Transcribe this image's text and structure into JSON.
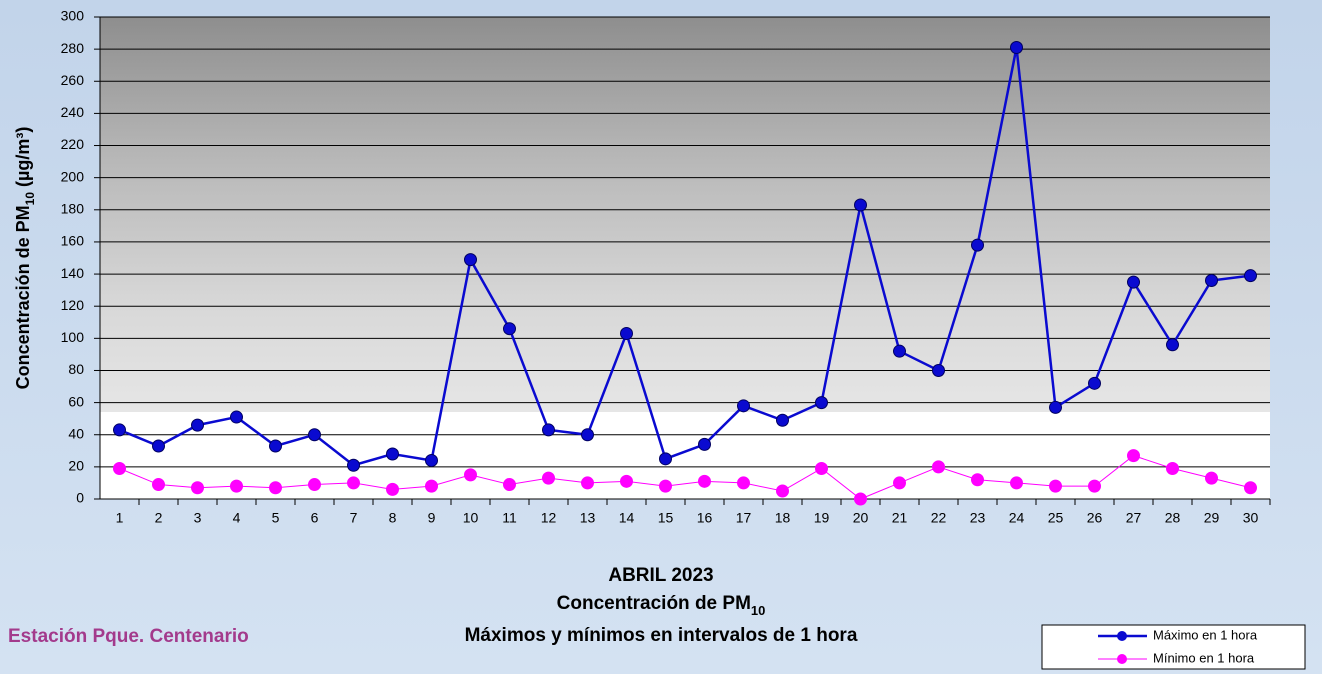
{
  "chart_data": {
    "type": "line",
    "title": [
      "ABRIL 2023",
      [
        "Concentración de PM",
        "10"
      ],
      "Máximos y mínimos en intervalos de 1 hora"
    ],
    "station": "Estación Pque. Centenario",
    "y_label": [
      "Concentración de PM",
      "10",
      " (µg/m³)"
    ],
    "categories": [
      1,
      2,
      3,
      4,
      5,
      6,
      7,
      8,
      9,
      10,
      11,
      12,
      13,
      14,
      15,
      16,
      17,
      18,
      19,
      20,
      21,
      22,
      23,
      24,
      25,
      26,
      27,
      28,
      29,
      30
    ],
    "series": [
      {
        "name": "Máximo en 1 hora",
        "color": "#0a0ad0",
        "values": [
          43,
          33,
          46,
          51,
          33,
          40,
          21,
          28,
          24,
          149,
          106,
          43,
          40,
          103,
          25,
          34,
          58,
          49,
          60,
          183,
          92,
          80,
          158,
          281,
          57,
          72,
          135,
          96,
          136,
          139
        ]
      },
      {
        "name": "Mínimo en 1 hora",
        "color": "#ff00ff",
        "values": [
          19,
          9,
          7,
          8,
          7,
          9,
          10,
          6,
          8,
          15,
          9,
          13,
          10,
          11,
          8,
          11,
          10,
          5,
          19,
          0,
          10,
          20,
          12,
          10,
          8,
          8,
          27,
          19,
          13,
          7
        ]
      }
    ],
    "ylim": [
      0,
      300
    ],
    "yticks": [
      0,
      20,
      40,
      60,
      80,
      100,
      120,
      140,
      160,
      180,
      200,
      220,
      240,
      260,
      280,
      300
    ],
    "grid": true
  }
}
